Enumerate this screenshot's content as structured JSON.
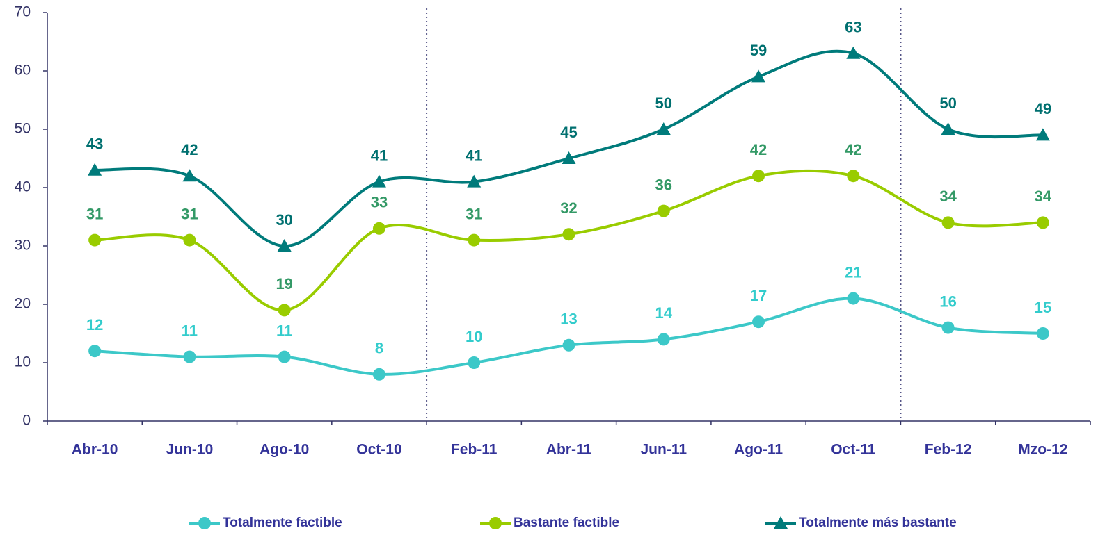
{
  "chart_data": {
    "type": "line",
    "categories": [
      "Abr-10",
      "Jun-10",
      "Ago-10",
      "Oct-10",
      "Feb-11",
      "Abr-11",
      "Jun-11",
      "Ago-11",
      "Oct-11",
      "Feb-12",
      "Mzo-12"
    ],
    "series": [
      {
        "name": "Totalmente factible",
        "color": "#3cc8c8",
        "label_color": "#33cccc",
        "marker": "circle",
        "values": [
          12,
          11,
          11,
          8,
          10,
          13,
          14,
          17,
          21,
          16,
          15
        ]
      },
      {
        "name": "Bastante factible",
        "color": "#99cc00",
        "label_color": "#339966",
        "marker": "circle",
        "values": [
          31,
          31,
          19,
          33,
          31,
          32,
          36,
          42,
          42,
          34,
          34
        ]
      },
      {
        "name": "Totalmente más bastante",
        "color": "#007b7b",
        "label_color": "#007070",
        "marker": "triangle",
        "values": [
          43,
          42,
          30,
          41,
          41,
          45,
          50,
          59,
          63,
          50,
          49
        ]
      }
    ],
    "ylim": [
      0,
      70
    ],
    "yticks": [
      0,
      10,
      20,
      30,
      40,
      50,
      60,
      70
    ],
    "grid": false,
    "legend": "bottom",
    "smooth": true,
    "data_labels": true
  }
}
